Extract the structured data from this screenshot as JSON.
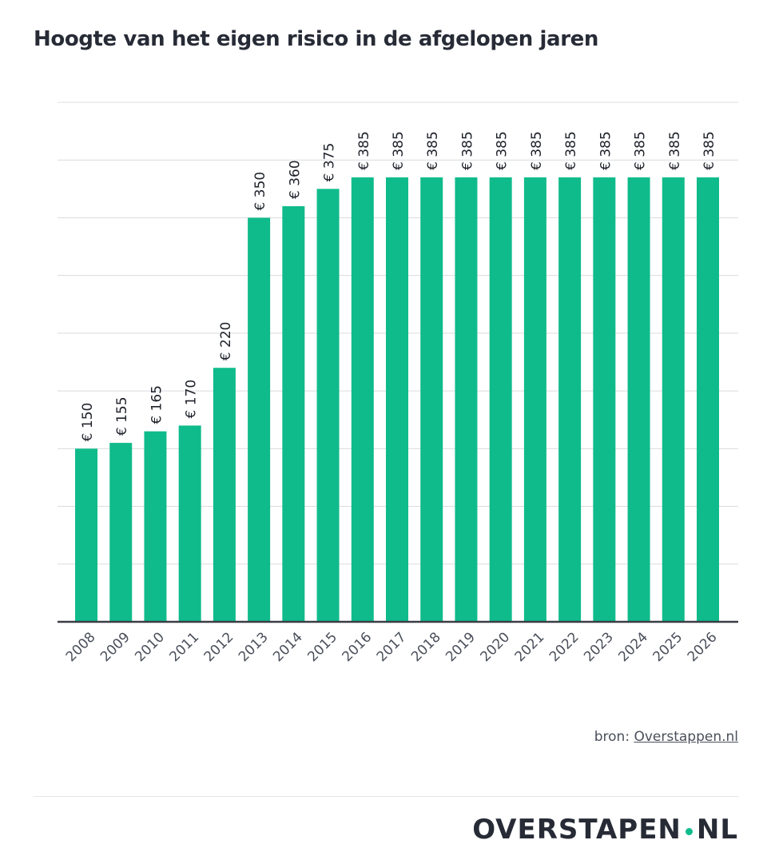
{
  "title": "Hoogte van het eigen risico in de afgelopen jaren",
  "source": {
    "prefix": "bron: ",
    "link_text": "Overstappen.nl"
  },
  "logo": {
    "part1": "OVERSTA",
    "part2": "P",
    "part3": "EN",
    "part4": "NL",
    "accent_color": "#10bb8b"
  },
  "colors": {
    "bar": "#10bb8b",
    "grid": "#d9dcdf",
    "axis": "#3a3d45"
  },
  "chart_data": {
    "type": "bar",
    "title": "Hoogte van het eigen risico in de afgelopen jaren",
    "xlabel": "",
    "ylabel": "",
    "categories": [
      "2008",
      "2009",
      "2010",
      "2011",
      "2012",
      "2013",
      "2014",
      "2015",
      "2016",
      "2017",
      "2018",
      "2019",
      "2020",
      "2021",
      "2022",
      "2023",
      "2024",
      "2025",
      "2026"
    ],
    "values": [
      150,
      155,
      165,
      170,
      220,
      350,
      360,
      375,
      385,
      385,
      385,
      385,
      385,
      385,
      385,
      385,
      385,
      385,
      385
    ],
    "labels": [
      "€ 150",
      "€ 155",
      "€ 165",
      "€ 170",
      "€ 220",
      "€ 350",
      "€ 360",
      "€ 375",
      "€ 385",
      "€ 385",
      "€ 385",
      "€ 385",
      "€ 385",
      "€ 385",
      "€ 385",
      "€ 385",
      "€ 385",
      "€ 385",
      "€ 385"
    ],
    "ylim": [
      0,
      450
    ],
    "yticks": [
      0,
      50,
      100,
      150,
      200,
      250,
      300,
      350,
      400,
      450
    ],
    "ytick_labels_shown": false,
    "grid": true,
    "legend": "none"
  }
}
